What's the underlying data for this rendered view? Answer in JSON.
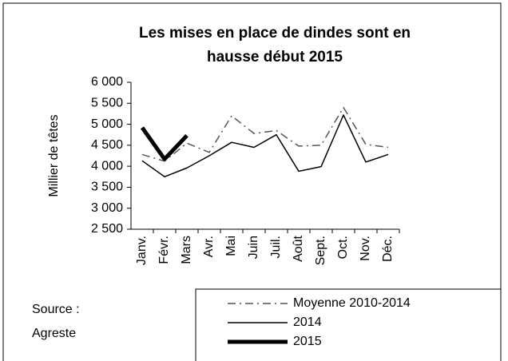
{
  "chart_data": {
    "type": "line",
    "title": [
      "Les mises en place de dindes sont en",
      "hausse début 2015"
    ],
    "y_label": "Millier de têtes",
    "source": [
      "Source :",
      "Agreste"
    ],
    "categories": [
      "Janv.",
      "Févr.",
      "Mars",
      "Avr.",
      "Mai",
      "Juin",
      "Juil.",
      "Août",
      "Sept.",
      "Oct.",
      "Nov.",
      "Déc."
    ],
    "ylim": [
      2500,
      6000
    ],
    "yticks": [
      {
        "value": 2500,
        "label": "2 500"
      },
      {
        "value": 3000,
        "label": "3 000"
      },
      {
        "value": 3500,
        "label": "3 500"
      },
      {
        "value": 4000,
        "label": "4 000"
      },
      {
        "value": 4500,
        "label": "4 500"
      },
      {
        "value": 5000,
        "label": "5 000"
      },
      {
        "value": 5500,
        "label": "5 500"
      },
      {
        "value": 6000,
        "label": "6 000"
      }
    ],
    "legend": "bottom-right",
    "series": [
      {
        "name": "Moyenne 2010-2014",
        "color": "#555555",
        "style": "dash-dot",
        "values": [
          4280,
          4120,
          4550,
          4330,
          5200,
          4780,
          4850,
          4480,
          4500,
          5400,
          4520,
          4450
        ]
      },
      {
        "name": "2014",
        "color": "#000000",
        "style": "thin",
        "values": [
          4130,
          3750,
          3960,
          4250,
          4570,
          4450,
          4750,
          3880,
          3990,
          5220,
          4100,
          4280
        ]
      },
      {
        "name": "2015",
        "color": "#000000",
        "style": "thick",
        "values": [
          4920,
          4170,
          4730,
          null,
          null,
          null,
          null,
          null,
          null,
          null,
          null,
          null
        ]
      }
    ]
  }
}
